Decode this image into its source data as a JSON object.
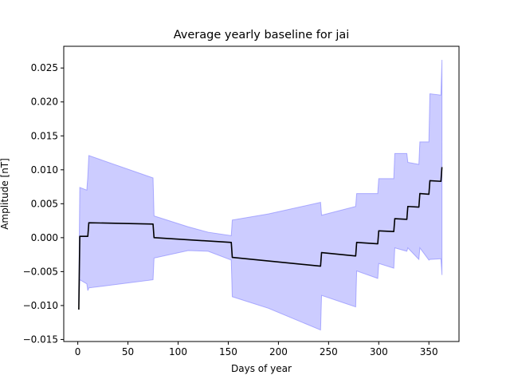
{
  "chart_data": {
    "type": "line",
    "title": "Average yearly baseline for jai",
    "xlabel": "Days of year",
    "ylabel": "Amplitude [nT]",
    "xlim": [
      -14,
      380
    ],
    "ylim": [
      -0.0153,
      0.0282
    ],
    "xticks": [
      0,
      50,
      100,
      150,
      200,
      250,
      300,
      350
    ],
    "yticks": [
      -0.015,
      -0.01,
      -0.005,
      0.0,
      0.005,
      0.01,
      0.015,
      0.02,
      0.025
    ],
    "ytick_labels": [
      "−0.015",
      "−0.010",
      "−0.005",
      "0.000",
      "0.005",
      "0.010",
      "0.015",
      "0.020",
      "0.025"
    ],
    "grid": false,
    "colors": {
      "line": "#000000",
      "band_fill": "#aaaaff",
      "band_edge": "#8080ff"
    },
    "series": [
      {
        "kind": "line",
        "x": [
          1,
          2,
          3,
          10,
          11,
          75,
          76,
          153,
          154,
          242,
          243,
          277,
          278,
          299,
          300,
          315,
          316,
          328,
          329,
          340,
          341,
          350,
          351,
          362,
          363
        ],
        "y": [
          -0.0106,
          0.0002,
          0.0002,
          0.0002,
          0.0022,
          0.002,
          0.0,
          -0.0007,
          -0.0029,
          -0.0042,
          -0.0022,
          -0.0027,
          -0.0007,
          -0.0009,
          0.001,
          0.0009,
          0.0028,
          0.0027,
          0.0046,
          0.0045,
          0.0065,
          0.0064,
          0.0084,
          0.0083,
          0.0104
        ]
      },
      {
        "kind": "band",
        "x": [
          1,
          2,
          9,
          10,
          11,
          75,
          76,
          110,
          130,
          153,
          154,
          190,
          242,
          243,
          277,
          278,
          299,
          300,
          315,
          316,
          328,
          329,
          340,
          341,
          350,
          351,
          362,
          363
        ],
        "upper": [
          -0.0075,
          0.0074,
          0.007,
          0.009,
          0.0121,
          0.0088,
          0.0032,
          0.0016,
          0.0008,
          0.0003,
          0.0026,
          0.0035,
          0.0052,
          0.0033,
          0.0046,
          0.0065,
          0.0065,
          0.0087,
          0.0087,
          0.0124,
          0.0124,
          0.0111,
          0.0108,
          0.0141,
          0.0141,
          0.0212,
          0.021,
          0.0262
        ],
        "lower": [
          -0.01,
          -0.0062,
          -0.0068,
          -0.0078,
          -0.0074,
          -0.0062,
          -0.003,
          -0.0019,
          -0.002,
          -0.0033,
          -0.0087,
          -0.0104,
          -0.0136,
          -0.0085,
          -0.0102,
          -0.0049,
          -0.006,
          -0.0038,
          -0.0045,
          -0.0015,
          -0.002,
          -0.0015,
          -0.0032,
          -0.0015,
          -0.0033,
          -0.0032,
          -0.0031,
          -0.0055
        ]
      }
    ]
  }
}
